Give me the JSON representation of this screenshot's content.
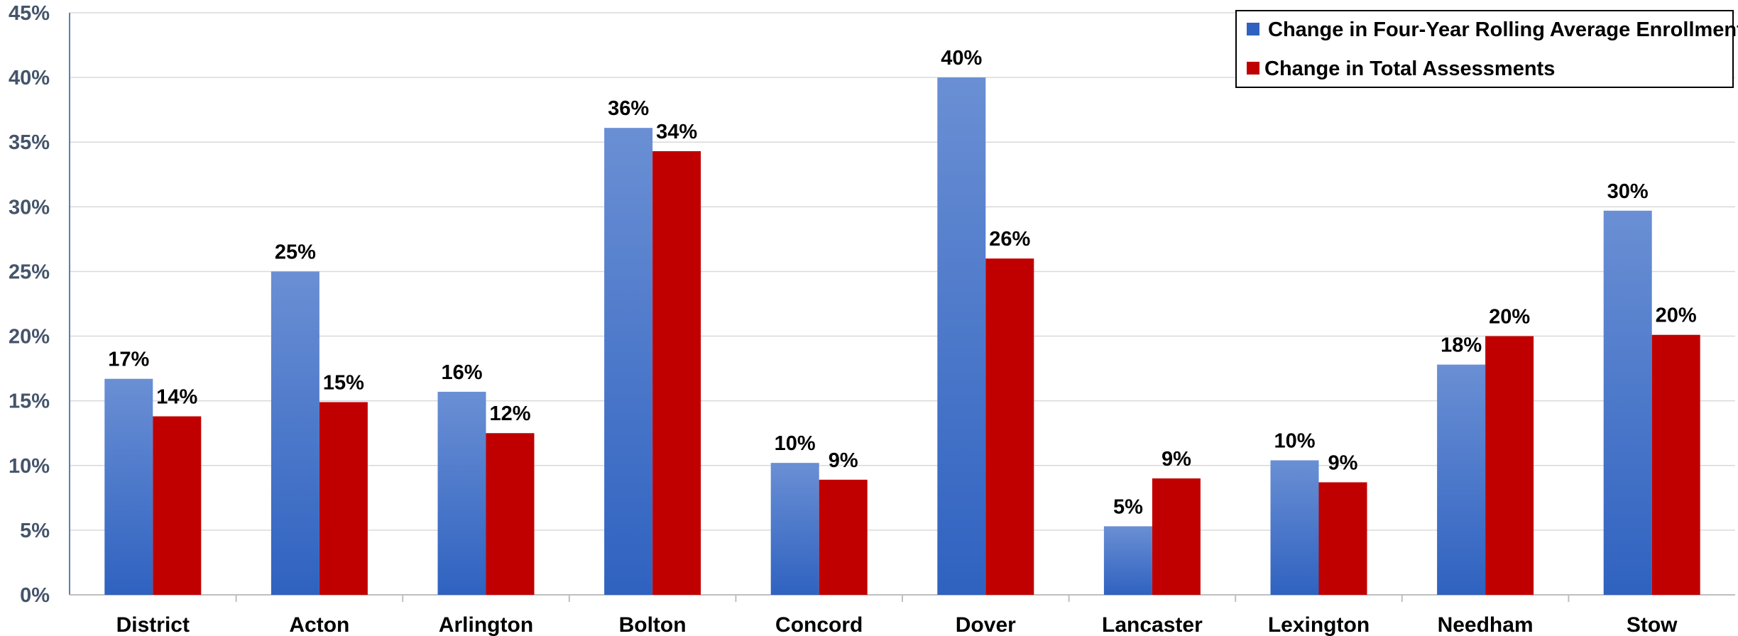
{
  "chart_data": {
    "type": "bar",
    "categories": [
      "District",
      "Acton",
      "Arlington",
      "Bolton",
      "Concord",
      "Dover",
      "Lancaster",
      "Lexington",
      "Needham",
      "Stow"
    ],
    "series": [
      {
        "name": "Change in Four-Year Rolling Average Enrollment",
        "values": [
          16.7,
          25.0,
          15.7,
          36.1,
          10.2,
          40.0,
          5.3,
          10.4,
          17.8,
          29.7
        ],
        "labels": [
          "17%",
          "25%",
          "16%",
          "36%",
          "10%",
          "40%",
          "5%",
          "10%",
          "18%",
          "30%"
        ],
        "color_top": "#6a8fd4",
        "color_bottom": "#2f62c0"
      },
      {
        "name": "Change in Total Assessments",
        "values": [
          13.8,
          14.9,
          12.5,
          34.3,
          8.9,
          26.0,
          9.0,
          8.7,
          20.0,
          20.1
        ],
        "labels": [
          "14%",
          "15%",
          "12%",
          "34%",
          "9%",
          "26%",
          "9%",
          "9%",
          "20%",
          "20%"
        ],
        "color": "#c00000"
      }
    ],
    "yticks": [
      "0%",
      "5%",
      "10%",
      "15%",
      "20%",
      "25%",
      "30%",
      "35%",
      "40%",
      "45%"
    ],
    "ylim": [
      0,
      45
    ],
    "grid": true,
    "legend_position": "top-right",
    "title": "",
    "xlabel": "",
    "ylabel": ""
  }
}
